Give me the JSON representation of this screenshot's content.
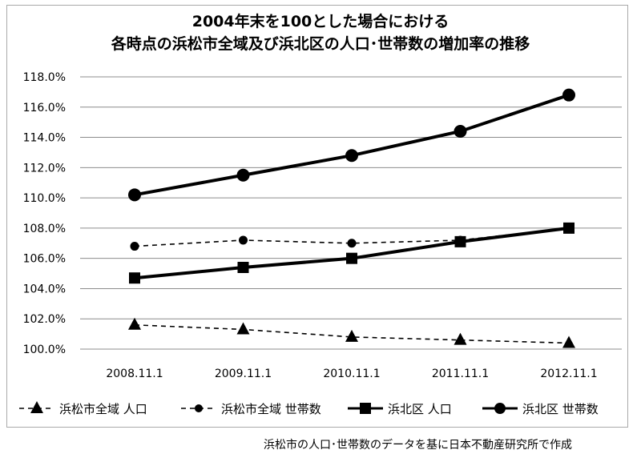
{
  "chart_data": {
    "type": "line",
    "title_lines": [
      "2004年末を100とした場合における",
      "各時点の浜松市全域及び浜北区の人口･世帯数の増加率の推移"
    ],
    "categories": [
      "2008.11.1",
      "2009.11.1",
      "2010.11.1",
      "2011.11.1",
      "2012.11.1"
    ],
    "ylim": [
      100.0,
      118.0
    ],
    "yticks": [
      "100.0%",
      "102.0%",
      "104.0%",
      "106.0%",
      "108.0%",
      "110.0%",
      "112.0%",
      "114.0%",
      "116.0%",
      "118.0%"
    ],
    "grid": true,
    "legend_position": "bottom",
    "series": [
      {
        "name": "浜松市全域 人口",
        "values": [
          101.6,
          101.3,
          100.8,
          100.6,
          100.4
        ],
        "marker": "triangle",
        "line": "dashed"
      },
      {
        "name": "浜松市全域 世帯数",
        "values": [
          106.8,
          107.2,
          107.0,
          107.2,
          108.0
        ],
        "marker": "circle",
        "line": "dashed"
      },
      {
        "name": "浜北区 人口",
        "values": [
          104.7,
          105.4,
          106.0,
          107.1,
          108.0
        ],
        "marker": "square",
        "line": "solid"
      },
      {
        "name": "浜北区 世帯数",
        "values": [
          110.2,
          111.5,
          112.8,
          114.4,
          116.8
        ],
        "marker": "circle",
        "line": "solid"
      }
    ],
    "source_note": "浜松市の人口･世帯数のデータを基に日本不動産研究所で作成"
  }
}
